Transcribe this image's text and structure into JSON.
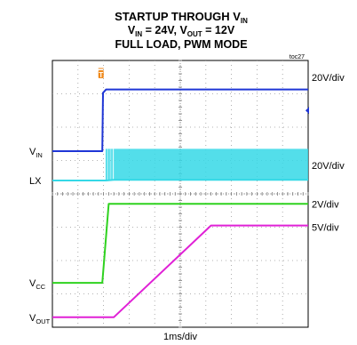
{
  "title": {
    "line1_main": "STARTUP THROUGH V",
    "line1_sub": "IN",
    "line2_a": "V",
    "line2_a_sub": "IN",
    "line2_b": " = 24V, V",
    "line2_b_sub": "OUT",
    "line2_c": " = 12V",
    "line3": "FULL LOAD, PWM MODE",
    "code": "toc27"
  },
  "chart_data": {
    "type": "line",
    "title": "STARTUP THROUGH VIN — VIN = 24V, VOUT = 12V, FULL LOAD, PWM MODE",
    "xlabel": "1ms/div",
    "xlim": [
      0,
      10
    ],
    "ylim": [
      0,
      8
    ],
    "grid": true,
    "x_unit": "div",
    "trigger_marker": {
      "x": 1.9,
      "symbol": "T"
    },
    "series": [
      {
        "name": "VIN",
        "sub": "IN",
        "base": "V",
        "color": "#1f36d6",
        "scale": "20V/div",
        "scale_at": 7.5,
        "x": [
          0,
          1.95,
          1.98,
          2.1,
          10
        ],
        "y": [
          5.28,
          5.28,
          7.03,
          7.13,
          7.13
        ]
      },
      {
        "name": "LX",
        "base": "LX",
        "color": "#35d8e6",
        "scale": "20V/div",
        "scale_at": 4.85,
        "x": [
          0,
          2.1,
          2.4,
          10
        ],
        "y": [
          4.4,
          4.4,
          4.42,
          4.42
        ],
        "switching": {
          "x_start": 2.4,
          "x_end": 10,
          "low": 4.4,
          "high": 5.35
        }
      },
      {
        "name": "VCC",
        "sub": "CC",
        "base": "V",
        "color": "#2fd21f",
        "scale": "2V/div",
        "scale_at": 3.7,
        "x": [
          0,
          1.95,
          2.2,
          10
        ],
        "y": [
          1.33,
          1.33,
          3.7,
          3.7
        ]
      },
      {
        "name": "VOUT",
        "sub": "OUT",
        "base": "V",
        "color": "#e021d6",
        "scale": "5V/div",
        "scale_at": 3.0,
        "x": [
          0,
          2.4,
          6.2,
          10
        ],
        "y": [
          0.3,
          0.3,
          3.05,
          3.05
        ]
      }
    ]
  }
}
